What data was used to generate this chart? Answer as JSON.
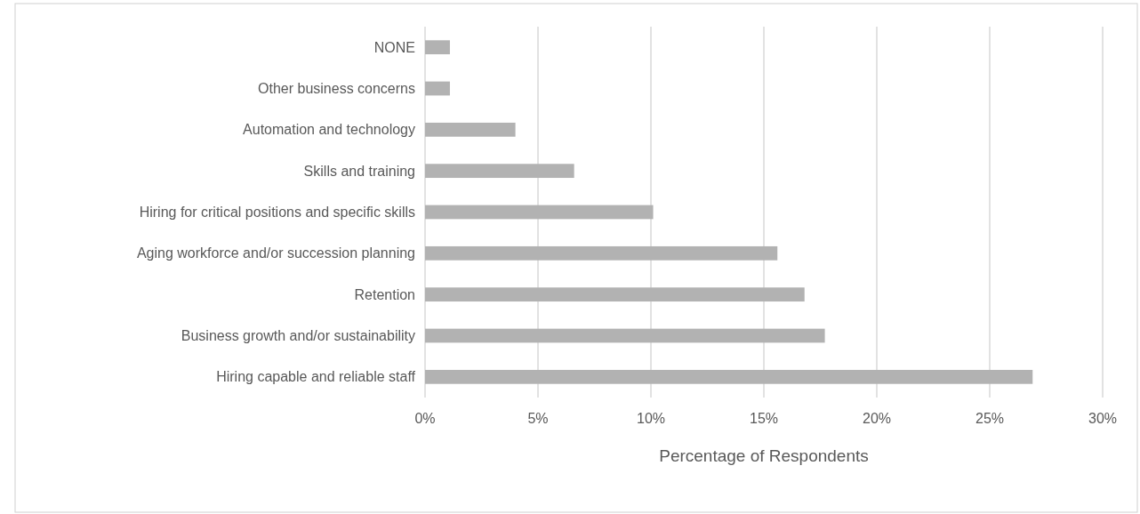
{
  "chart_data": {
    "type": "bar",
    "orientation": "horizontal",
    "xlabel": "Percentage of Respondents",
    "categories": [
      "NONE",
      "Other business concerns",
      "Automation and technology",
      "Skills and training",
      "Hiring for critical positions and specific skills",
      "Aging workforce and/or succession planning",
      "Retention",
      "Business growth and/or sustainability",
      "Hiring capable and reliable staff"
    ],
    "values": [
      1.1,
      1.1,
      4.0,
      6.6,
      10.1,
      15.6,
      16.8,
      17.7,
      26.9
    ],
    "color": "#b2b2b2",
    "xlim": [
      0,
      30
    ],
    "xticks": [
      {
        "value": 0,
        "label": "0%"
      },
      {
        "value": 5,
        "label": "5%"
      },
      {
        "value": 10,
        "label": "10%"
      },
      {
        "value": 15,
        "label": "15%"
      },
      {
        "value": 20,
        "label": "20%"
      },
      {
        "value": 25,
        "label": "25%"
      },
      {
        "value": 30,
        "label": "30%"
      }
    ],
    "grid": "x"
  }
}
